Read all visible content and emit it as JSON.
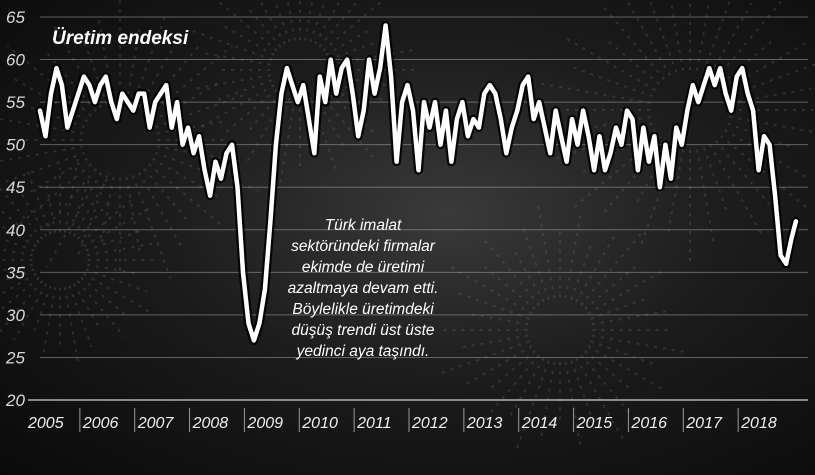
{
  "chart_data": {
    "type": "line",
    "title": "Üretim endeksi",
    "xlabel": "",
    "ylabel": "",
    "ylim": [
      20,
      65
    ],
    "yticks": [
      20,
      25,
      30,
      35,
      40,
      45,
      50,
      55,
      60,
      65
    ],
    "xlim": [
      2005,
      2019
    ],
    "xticks": [
      "2005",
      "2006",
      "2007",
      "2008",
      "2009",
      "2010",
      "2011",
      "2012",
      "2013",
      "2014",
      "2015",
      "2016",
      "2017",
      "2018"
    ],
    "grid": true,
    "annotation": [
      "Türk imalat",
      "sektöründeki firmalar",
      "ekimde de üretimi",
      "azaltmaya devam etti.",
      "Böylelikle üretimdeki",
      "düşüş trendi üst üste",
      "yedinci aya taşındı."
    ],
    "series": [
      {
        "name": "",
        "color": "#ffffff",
        "points": [
          [
            2005.0,
            54
          ],
          [
            2005.1,
            51
          ],
          [
            2005.2,
            56
          ],
          [
            2005.3,
            59
          ],
          [
            2005.4,
            57
          ],
          [
            2005.5,
            52
          ],
          [
            2005.6,
            54
          ],
          [
            2005.7,
            56
          ],
          [
            2005.8,
            58
          ],
          [
            2005.9,
            57
          ],
          [
            2006.0,
            55
          ],
          [
            2006.1,
            57
          ],
          [
            2006.2,
            58
          ],
          [
            2006.3,
            55
          ],
          [
            2006.4,
            53
          ],
          [
            2006.5,
            56
          ],
          [
            2006.6,
            55
          ],
          [
            2006.7,
            54
          ],
          [
            2006.8,
            56
          ],
          [
            2006.9,
            56
          ],
          [
            2007.0,
            52
          ],
          [
            2007.1,
            55
          ],
          [
            2007.2,
            56
          ],
          [
            2007.3,
            57
          ],
          [
            2007.4,
            52
          ],
          [
            2007.5,
            55
          ],
          [
            2007.6,
            50
          ],
          [
            2007.7,
            52
          ],
          [
            2007.8,
            49
          ],
          [
            2007.9,
            51
          ],
          [
            2008.0,
            47
          ],
          [
            2008.1,
            44
          ],
          [
            2008.2,
            48
          ],
          [
            2008.3,
            46
          ],
          [
            2008.4,
            49
          ],
          [
            2008.5,
            50
          ],
          [
            2008.6,
            45
          ],
          [
            2008.7,
            35
          ],
          [
            2008.8,
            29
          ],
          [
            2008.9,
            27
          ],
          [
            2009.0,
            29
          ],
          [
            2009.1,
            33
          ],
          [
            2009.2,
            41
          ],
          [
            2009.3,
            50
          ],
          [
            2009.4,
            56
          ],
          [
            2009.5,
            59
          ],
          [
            2009.6,
            57
          ],
          [
            2009.7,
            55
          ],
          [
            2009.8,
            57
          ],
          [
            2009.9,
            53
          ],
          [
            2010.0,
            49
          ],
          [
            2010.1,
            58
          ],
          [
            2010.2,
            55
          ],
          [
            2010.3,
            60
          ],
          [
            2010.4,
            56
          ],
          [
            2010.5,
            59
          ],
          [
            2010.6,
            60
          ],
          [
            2010.7,
            56
          ],
          [
            2010.8,
            51
          ],
          [
            2010.9,
            54
          ],
          [
            2011.0,
            60
          ],
          [
            2011.1,
            56
          ],
          [
            2011.2,
            59
          ],
          [
            2011.3,
            64
          ],
          [
            2011.4,
            58
          ],
          [
            2011.5,
            48
          ],
          [
            2011.6,
            55
          ],
          [
            2011.7,
            57
          ],
          [
            2011.8,
            54
          ],
          [
            2011.9,
            47
          ],
          [
            2012.0,
            55
          ],
          [
            2012.1,
            52
          ],
          [
            2012.2,
            55
          ],
          [
            2012.3,
            50
          ],
          [
            2012.4,
            54
          ],
          [
            2012.5,
            48
          ],
          [
            2012.6,
            53
          ],
          [
            2012.7,
            55
          ],
          [
            2012.8,
            51
          ],
          [
            2012.9,
            53
          ],
          [
            2013.0,
            52
          ],
          [
            2013.1,
            56
          ],
          [
            2013.2,
            57
          ],
          [
            2013.3,
            56
          ],
          [
            2013.4,
            53
          ],
          [
            2013.5,
            49
          ],
          [
            2013.6,
            52
          ],
          [
            2013.7,
            54
          ],
          [
            2013.8,
            57
          ],
          [
            2013.9,
            58
          ],
          [
            2014.0,
            53
          ],
          [
            2014.1,
            55
          ],
          [
            2014.2,
            52
          ],
          [
            2014.3,
            49
          ],
          [
            2014.4,
            54
          ],
          [
            2014.5,
            51
          ],
          [
            2014.6,
            48
          ],
          [
            2014.7,
            53
          ],
          [
            2014.8,
            50
          ],
          [
            2014.9,
            54
          ],
          [
            2015.0,
            51
          ],
          [
            2015.1,
            47
          ],
          [
            2015.2,
            51
          ],
          [
            2015.3,
            47
          ],
          [
            2015.4,
            49
          ],
          [
            2015.5,
            52
          ],
          [
            2015.6,
            50
          ],
          [
            2015.7,
            54
          ],
          [
            2015.8,
            53
          ],
          [
            2015.9,
            47
          ],
          [
            2016.0,
            52
          ],
          [
            2016.1,
            48
          ],
          [
            2016.2,
            51
          ],
          [
            2016.3,
            45
          ],
          [
            2016.4,
            50
          ],
          [
            2016.5,
            46
          ],
          [
            2016.6,
            52
          ],
          [
            2016.7,
            50
          ],
          [
            2016.8,
            54
          ],
          [
            2016.9,
            57
          ],
          [
            2017.0,
            55
          ],
          [
            2017.1,
            57
          ],
          [
            2017.2,
            59
          ],
          [
            2017.3,
            57
          ],
          [
            2017.4,
            59
          ],
          [
            2017.5,
            56
          ],
          [
            2017.6,
            54
          ],
          [
            2017.7,
            58
          ],
          [
            2017.8,
            59
          ],
          [
            2017.9,
            56
          ],
          [
            2018.0,
            54
          ],
          [
            2018.1,
            47
          ],
          [
            2018.2,
            51
          ],
          [
            2018.3,
            50
          ],
          [
            2018.4,
            44
          ],
          [
            2018.5,
            37
          ],
          [
            2018.6,
            36
          ],
          [
            2018.7,
            39
          ],
          [
            2018.78,
            41
          ]
        ]
      }
    ]
  }
}
